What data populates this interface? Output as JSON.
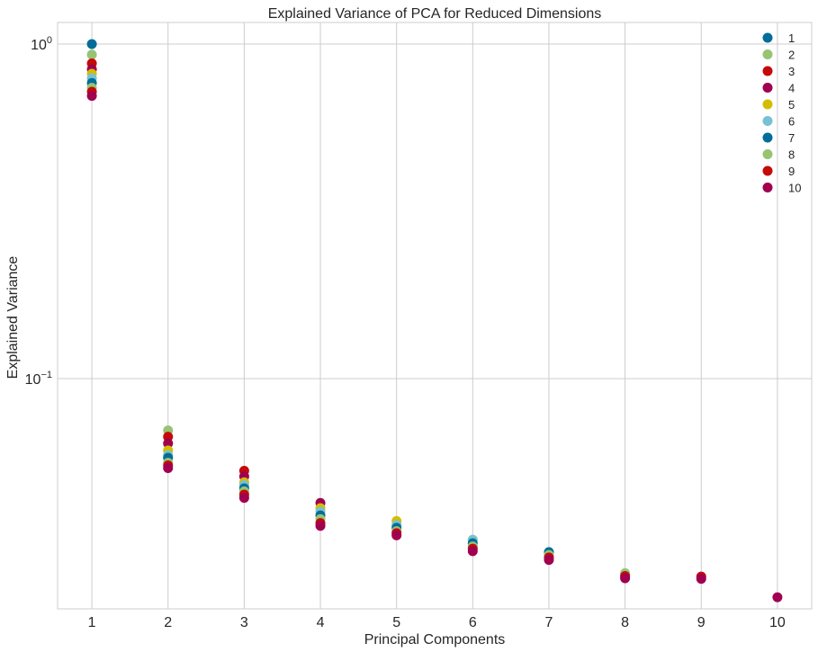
{
  "chart_data": {
    "type": "scatter",
    "title": "Explained Variance of PCA for Reduced Dimensions",
    "xlabel": "Principal Components",
    "ylabel": "Explained Variance",
    "yscale": "log",
    "grid": true,
    "legend": "top-right",
    "xlim": [
      0.55,
      10.45
    ],
    "ylim": [
      0.0205,
      1.16
    ],
    "xticks": [
      1,
      2,
      3,
      4,
      5,
      6,
      7,
      8,
      9,
      10
    ],
    "yticks": [
      {
        "value": 1.0,
        "base": "10",
        "exp": "0"
      },
      {
        "value": 0.1,
        "base": "10",
        "exp": "−1"
      }
    ],
    "series": [
      {
        "name": "1",
        "color": "#006e99",
        "x": [
          1
        ],
        "y": [
          1.0
        ]
      },
      {
        "name": "2",
        "color": "#97c473",
        "x": [
          1,
          2
        ],
        "y": [
          0.93,
          0.07
        ]
      },
      {
        "name": "3",
        "color": "#c50a0a",
        "x": [
          1,
          2,
          3
        ],
        "y": [
          0.875,
          0.067,
          0.053
        ]
      },
      {
        "name": "4",
        "color": "#a0004f",
        "x": [
          1,
          2,
          3,
          4
        ],
        "y": [
          0.84,
          0.064,
          0.051,
          0.0425
        ]
      },
      {
        "name": "5",
        "color": "#d4bd00",
        "x": [
          1,
          2,
          3,
          4,
          5
        ],
        "y": [
          0.815,
          0.061,
          0.049,
          0.041,
          0.0375
        ]
      },
      {
        "name": "6",
        "color": "#78c1d4",
        "x": [
          1,
          2,
          3,
          4,
          5,
          6
        ],
        "y": [
          0.79,
          0.059,
          0.048,
          0.04,
          0.0365,
          0.033
        ]
      },
      {
        "name": "7",
        "color": "#006e99",
        "x": [
          1,
          2,
          3,
          4,
          5,
          6,
          7
        ],
        "y": [
          0.765,
          0.058,
          0.047,
          0.039,
          0.0358,
          0.0322,
          0.0303
        ]
      },
      {
        "name": "8",
        "color": "#97c473",
        "x": [
          1,
          2,
          3,
          4,
          5,
          6,
          7,
          8
        ],
        "y": [
          0.74,
          0.056,
          0.046,
          0.038,
          0.035,
          0.0315,
          0.0297,
          0.0262
        ]
      },
      {
        "name": "9",
        "color": "#c50a0a",
        "x": [
          1,
          2,
          3,
          4,
          5,
          6,
          7,
          8,
          9
        ],
        "y": [
          0.72,
          0.055,
          0.045,
          0.037,
          0.0345,
          0.031,
          0.0292,
          0.0257,
          0.0256
        ]
      },
      {
        "name": "10",
        "color": "#a0004f",
        "x": [
          1,
          2,
          3,
          4,
          5,
          6,
          7,
          8,
          9,
          10
        ],
        "y": [
          0.7,
          0.054,
          0.044,
          0.0363,
          0.034,
          0.0305,
          0.0287,
          0.0253,
          0.0252,
          0.0222
        ]
      }
    ]
  }
}
